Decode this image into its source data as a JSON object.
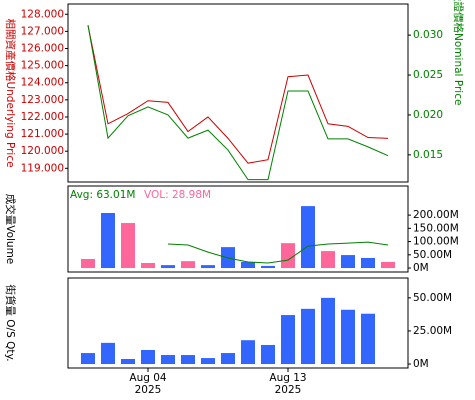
{
  "chart_data": [
    {
      "type": "line",
      "categories": [
        null,
        null,
        null,
        "Aug 04",
        null,
        null,
        null,
        null,
        null,
        null,
        "Aug 13",
        null,
        null,
        null,
        null,
        null
      ],
      "category_years": [
        null,
        null,
        null,
        "2025",
        null,
        null,
        null,
        null,
        null,
        null,
        "2025",
        null,
        null,
        null,
        null,
        null
      ],
      "ylabel": "相關資產價格Underlying Price",
      "y2label": "認股證價格Nominal Price",
      "ylim": [
        118.2,
        128.6
      ],
      "yticks": [
        {
          "value": 119,
          "label": "119.000"
        },
        {
          "value": 120,
          "label": "120.000"
        },
        {
          "value": 121,
          "label": "121.000"
        },
        {
          "value": 122,
          "label": "122.000"
        },
        {
          "value": 123,
          "label": "123.000"
        },
        {
          "value": 124,
          "label": "124.000"
        },
        {
          "value": 125,
          "label": "125.000"
        },
        {
          "value": 126,
          "label": "126.000"
        },
        {
          "value": 127,
          "label": "127.000"
        },
        {
          "value": 128,
          "label": "128.000"
        }
      ],
      "y2lim": [
        0.0116,
        0.0339
      ],
      "y2ticks": [
        {
          "value": 0.015,
          "label": "0.015"
        },
        {
          "value": 0.02,
          "label": "0.020"
        },
        {
          "value": 0.025,
          "label": "0.025"
        },
        {
          "value": 0.03,
          "label": "0.030"
        }
      ],
      "series": [
        {
          "color": "#cc0000",
          "values": [
            127.35,
            121.6,
            122.2,
            122.95,
            122.85,
            121.15,
            122.0,
            120.75,
            119.3,
            119.5,
            124.35,
            124.45,
            121.6,
            121.45,
            120.8,
            120.75
          ]
        },
        {
          "color": "#008000",
          "axis": "y2",
          "values": [
            0.03125,
            0.0171,
            0.0199,
            0.021,
            0.02,
            0.0171,
            0.0181,
            0.0156,
            0.0119,
            0.0119,
            0.023,
            0.023,
            0.017,
            0.017,
            0.016,
            0.0149
          ]
        }
      ]
    },
    {
      "type": "bar",
      "ylabel": "成交量Volume",
      "annotations": [
        "Avg: 63.01M",
        "VOL: 28.98M"
      ],
      "ylim": [
        -15,
        310
      ],
      "y2ticks": [
        {
          "value": 0,
          "label": "0M"
        },
        {
          "value": 50,
          "label": "50.00M"
        },
        {
          "value": 100,
          "label": "100.00M"
        },
        {
          "value": 150,
          "label": "150.00M"
        },
        {
          "value": 200,
          "label": "200.00M"
        }
      ],
      "values": [
        34,
        208,
        170,
        19,
        11,
        26,
        11,
        79,
        23,
        8,
        94,
        234,
        64,
        49,
        38,
        23
      ],
      "colors": [
        "#ff6699",
        "#3366ff",
        "#ff6699",
        "#ff6699",
        "#3366ff",
        "#ff6699",
        "#3366ff",
        "#3366ff",
        "#3366ff",
        "#3366ff",
        "#ff6699",
        "#3366ff",
        "#ff6699",
        "#3366ff",
        "#3366ff",
        "#ff6699"
      ],
      "series": [
        {
          "color": "#008000",
          "values": [
            null,
            null,
            null,
            null,
            91,
            87,
            60,
            38,
            23,
            19,
            30,
            83,
            91,
            94,
            98,
            87
          ]
        }
      ]
    },
    {
      "type": "bar",
      "ylabel": "街貨量 O/S Qty.",
      "ylim": [
        -3,
        65
      ],
      "y2ticks": [
        {
          "value": 0,
          "label": "0M"
        },
        {
          "value": 25,
          "label": "25.00M"
        },
        {
          "value": 50,
          "label": "50.00M"
        }
      ],
      "values": [
        8.3,
        16,
        3.8,
        10.6,
        6.8,
        6.8,
        4.5,
        8.3,
        18,
        14.4,
        37,
        41.7,
        50,
        41,
        38,
        null
      ],
      "color": "#3366ff"
    }
  ]
}
